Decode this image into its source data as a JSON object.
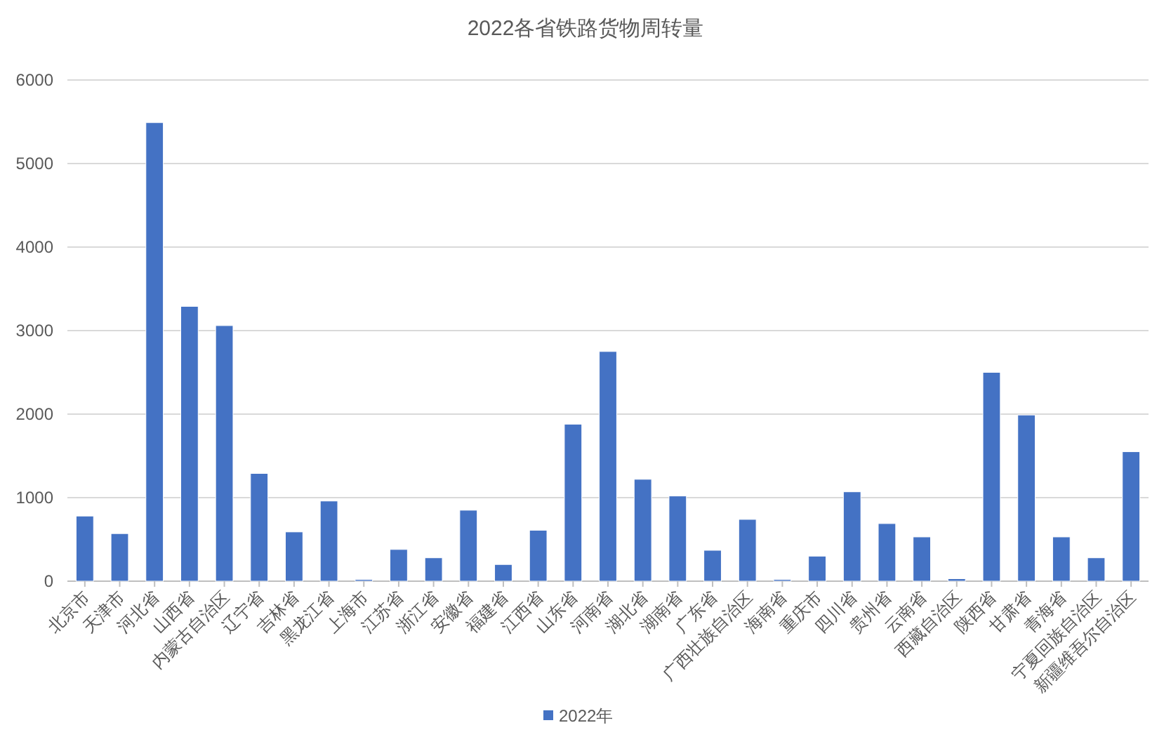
{
  "chart_data": {
    "type": "bar",
    "title": "2022各省铁路货物周转量",
    "categories": [
      "北京市",
      "天津市",
      "河北省",
      "山西省",
      "内蒙古自治区",
      "辽宁省",
      "吉林省",
      "黑龙江省",
      "上海市",
      "江苏省",
      "浙江省",
      "安徽省",
      "福建省",
      "江西省",
      "山东省",
      "河南省",
      "湖北省",
      "湖南省",
      "广东省",
      "广西壮族自治区",
      "海南省",
      "重庆市",
      "四川省",
      "贵州省",
      "云南省",
      "西藏自治区",
      "陕西省",
      "甘肃省",
      "青海省",
      "宁夏回族自治区",
      "新疆维吾尔自治区"
    ],
    "series": [
      {
        "name": "2022年",
        "color": "#4472c4",
        "values": [
          780,
          570,
          5490,
          3290,
          3060,
          1290,
          590,
          960,
          20,
          380,
          280,
          850,
          200,
          610,
          1880,
          2750,
          1220,
          1020,
          370,
          740,
          20,
          300,
          1070,
          690,
          530,
          30,
          2500,
          1990,
          530,
          280,
          1550
        ]
      }
    ],
    "ylim": [
      0,
      6000
    ],
    "yticks": [
      0,
      1000,
      2000,
      3000,
      4000,
      5000,
      6000
    ],
    "grid": "y",
    "legend": "bottom"
  }
}
